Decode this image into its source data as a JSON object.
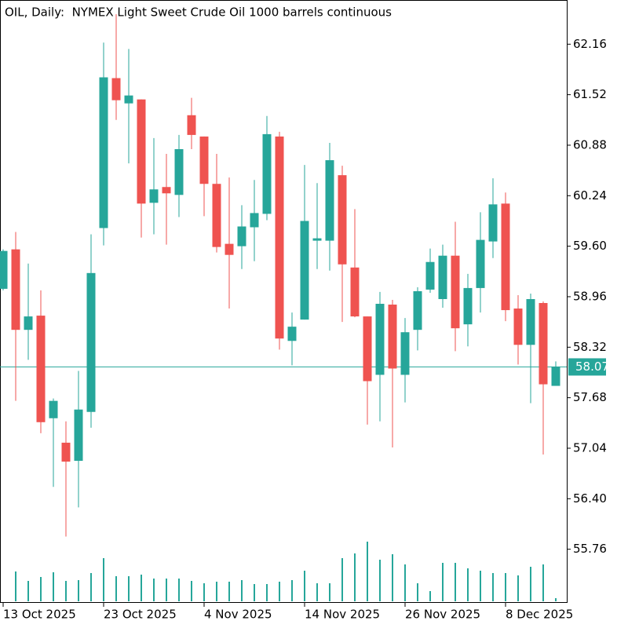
{
  "chart_data": {
    "type": "candlestick",
    "title": "OIL, Daily:  NYMEX Light Sweet Crude Oil 1000 barrels continuous",
    "categories": [
      "13 Oct 2025",
      null,
      null,
      null,
      null,
      null,
      null,
      null,
      "23 Oct 2025",
      null,
      null,
      null,
      null,
      null,
      null,
      null,
      "4 Nov 2025",
      null,
      null,
      null,
      null,
      null,
      null,
      null,
      "14 Nov 2025",
      null,
      null,
      null,
      null,
      null,
      null,
      null,
      "26 Nov 2025",
      null,
      null,
      null,
      null,
      null,
      null,
      null,
      "8 Dec 2025",
      null,
      null,
      null,
      null
    ],
    "open": [
      59.06,
      59.56,
      58.54,
      58.72,
      57.42,
      57.11,
      56.88,
      57.5,
      59.83,
      61.73,
      61.41,
      61.46,
      60.15,
      60.35,
      60.25,
      61.26,
      60.99,
      60.39,
      59.63,
      59.6,
      59.84,
      60.01,
      60.99,
      58.4,
      58.67,
      59.67,
      59.67,
      60.5,
      59.33,
      58.71,
      57.97,
      58.86,
      57.97,
      58.54,
      59.05,
      58.93,
      59.48,
      58.61,
      59.07,
      59.66,
      60.14,
      58.81,
      58.35,
      58.88,
      57.83
    ],
    "high": [
      59.56,
      59.78,
      59.38,
      59.04,
      57.67,
      57.38,
      58.02,
      59.75,
      62.18,
      62.54,
      62.1,
      61.46,
      60.97,
      60.77,
      61.01,
      61.48,
      60.99,
      60.77,
      60.47,
      60.12,
      60.44,
      61.25,
      61.05,
      58.76,
      60.63,
      60.4,
      60.91,
      60.62,
      60.07,
      58.71,
      59.02,
      58.92,
      58.69,
      59.08,
      59.57,
      59.62,
      59.91,
      59.25,
      60.03,
      60.46,
      60.28,
      58.98,
      59.0,
      58.9,
      58.14
    ],
    "low": [
      59.04,
      57.64,
      58.16,
      57.23,
      56.55,
      55.92,
      56.29,
      57.3,
      59.61,
      61.2,
      60.65,
      59.71,
      59.75,
      59.62,
      59.97,
      60.83,
      59.98,
      59.52,
      58.81,
      59.31,
      59.41,
      59.93,
      58.29,
      58.09,
      58.67,
      59.31,
      59.29,
      58.64,
      58.7,
      57.34,
      57.38,
      57.05,
      57.62,
      58.28,
      59.01,
      58.82,
      58.27,
      58.33,
      58.76,
      59.45,
      58.65,
      58.1,
      57.61,
      56.96,
      57.83
    ],
    "close": [
      59.54,
      58.54,
      58.71,
      57.37,
      57.64,
      56.87,
      57.53,
      59.26,
      61.74,
      61.45,
      61.51,
      60.14,
      60.32,
      60.27,
      60.83,
      61.01,
      60.39,
      59.59,
      59.49,
      59.85,
      60.02,
      61.02,
      58.43,
      58.58,
      59.92,
      59.7,
      60.69,
      59.37,
      58.71,
      57.89,
      58.87,
      58.05,
      58.51,
      59.03,
      59.4,
      59.48,
      58.56,
      59.07,
      59.68,
      60.13,
      58.79,
      58.35,
      58.93,
      57.85,
      58.07
    ],
    "volume": [
      null,
      38,
      26,
      31,
      37,
      26,
      27,
      36,
      55,
      32,
      32,
      34,
      29,
      29,
      29,
      26,
      23,
      25,
      25,
      27,
      22,
      22,
      25,
      27,
      39,
      23,
      23,
      55,
      61,
      76,
      53,
      60,
      47,
      23,
      13,
      49,
      49,
      42,
      39,
      36,
      36,
      33,
      44,
      47,
      4
    ],
    "up_color": "#26a69a",
    "down_color": "#ef5350",
    "volume_color": "#26a69a",
    "current_price": 58.07,
    "current_price_color": "#26a69a",
    "ylim": [
      55.08,
      62.72
    ],
    "yticks": [
      55.76,
      {
        "value": 56.4,
        "label": "56.40"
      },
      57.04,
      57.68,
      58.32,
      58.96,
      {
        "value": 59.6,
        "label": "59.60"
      },
      60.24,
      60.88,
      61.52,
      62.16
    ]
  }
}
